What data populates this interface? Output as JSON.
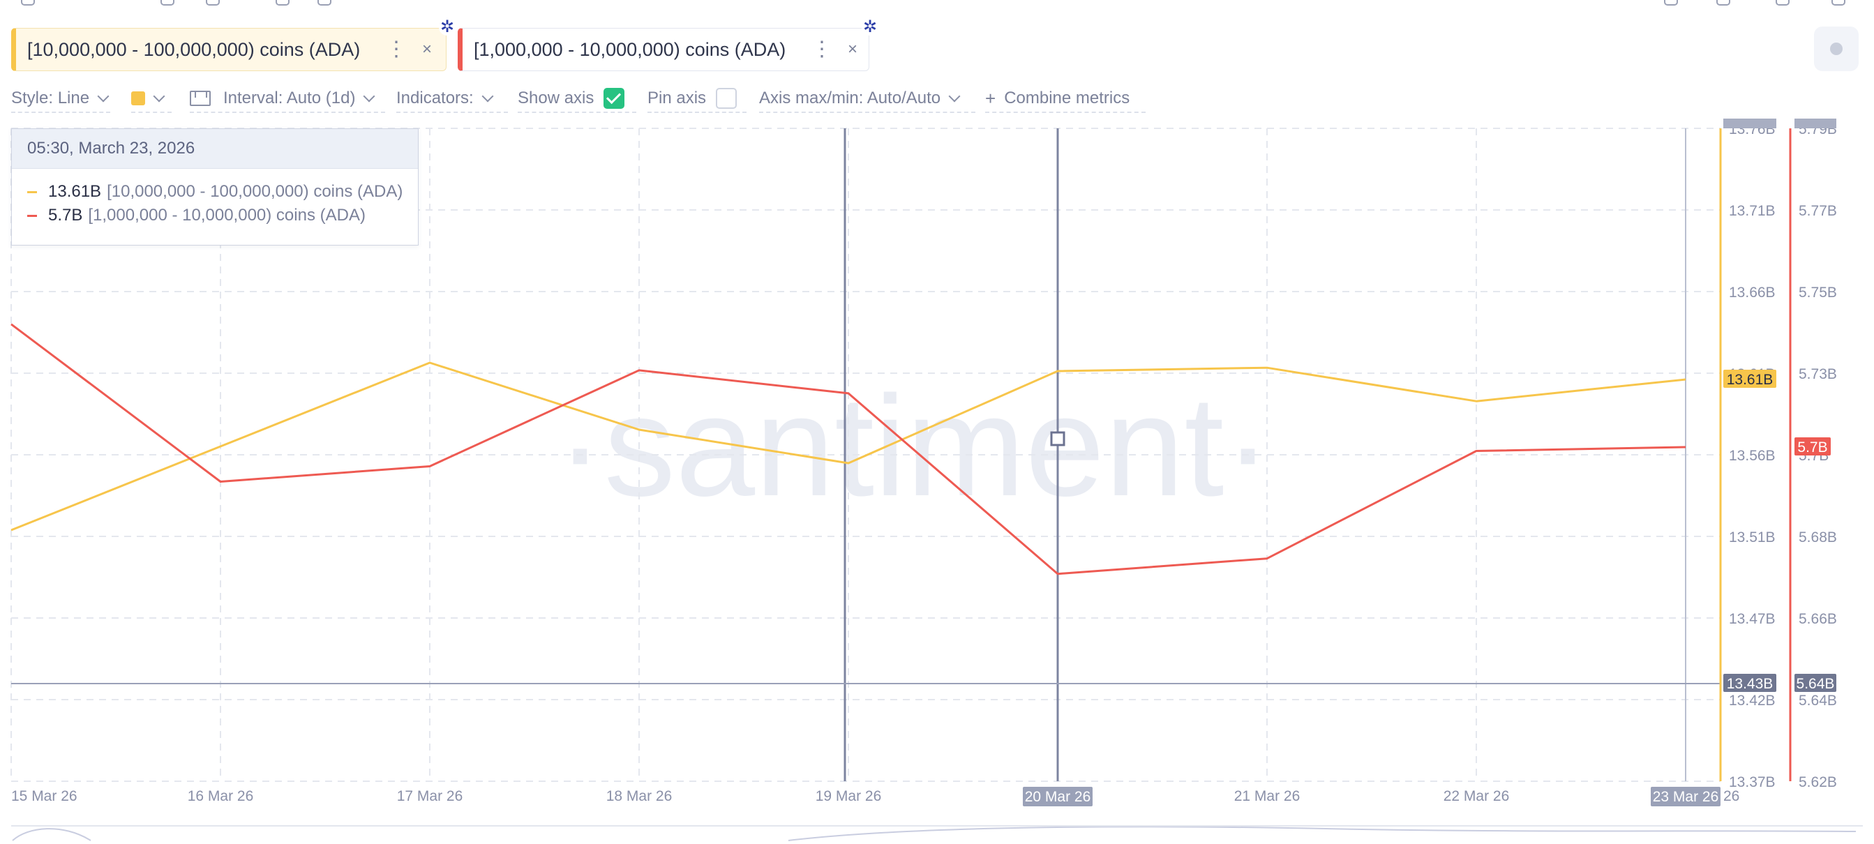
{
  "metrics": [
    {
      "label": "[10,000,000 - 100,000,000) coins (ADA)",
      "color": "#f7c54b",
      "icon": "cardano-icon"
    },
    {
      "label": "[1,000,000 - 10,000,000) coins (ADA)",
      "color": "#ee5a52",
      "icon": "cardano-icon"
    }
  ],
  "toolbar": {
    "style": "Style: Line",
    "interval": "Interval: Auto (1d)",
    "indicators": "Indicators:",
    "show_axis": "Show axis",
    "show_axis_checked": true,
    "pin_axis": "Pin axis",
    "pin_axis_checked": false,
    "axis_maxmin": "Axis max/min: Auto/Auto",
    "combine": "Combine metrics"
  },
  "tooltip": {
    "date": "05:30, March 23, 2026",
    "rows": [
      {
        "value": "13.61B",
        "name": "[10,000,000 - 100,000,000) coins (ADA)",
        "color": "#f7c54b"
      },
      {
        "value": "5.7B",
        "name": "[1,000,000 - 10,000,000) coins (ADA)",
        "color": "#ee5a52"
      }
    ]
  },
  "watermark": "·santiment·",
  "chart_data": {
    "type": "line",
    "x": [
      "15 Mar 26",
      "16 Mar 26",
      "17 Mar 26",
      "18 Mar 26",
      "19 Mar 26",
      "20 Mar 26",
      "21 Mar 26",
      "22 Mar 26",
      "23 Mar 26"
    ],
    "series": [
      {
        "name": "[10,000,000 - 100,000,000) coins (ADA)",
        "color": "#f7c54b",
        "axis": "left",
        "values": [
          13.52,
          13.57,
          13.62,
          13.58,
          13.56,
          13.615,
          13.617,
          13.597,
          13.61
        ]
      },
      {
        "name": "[1,000,000 - 10,000,000) coins (ADA)",
        "color": "#ee5a52",
        "axis": "right",
        "values": [
          5.739,
          5.698,
          5.702,
          5.727,
          5.721,
          5.674,
          5.678,
          5.706,
          5.707
        ]
      }
    ],
    "y_left": {
      "ticks": [
        "13.76B",
        "13.71B",
        "13.66B",
        "13.61B",
        "13.56B",
        "13.51B",
        "13.47B",
        "13.42B",
        "13.37B"
      ],
      "min": 13.37,
      "max": 13.76
    },
    "y_right": {
      "ticks": [
        "5.79B",
        "5.77B",
        "5.75B",
        "5.73B",
        "5.7B",
        "5.68B",
        "5.66B",
        "5.64B",
        "5.62B"
      ],
      "min": 5.62,
      "max": 5.79
    },
    "current_left": "13.61B",
    "current_right": "5.7B",
    "crosshair_left": "13.43B",
    "crosshair_right": "5.64B",
    "crosshair_date": "20 Mar 26",
    "hover_date": "23 Mar 26",
    "grid": true
  }
}
